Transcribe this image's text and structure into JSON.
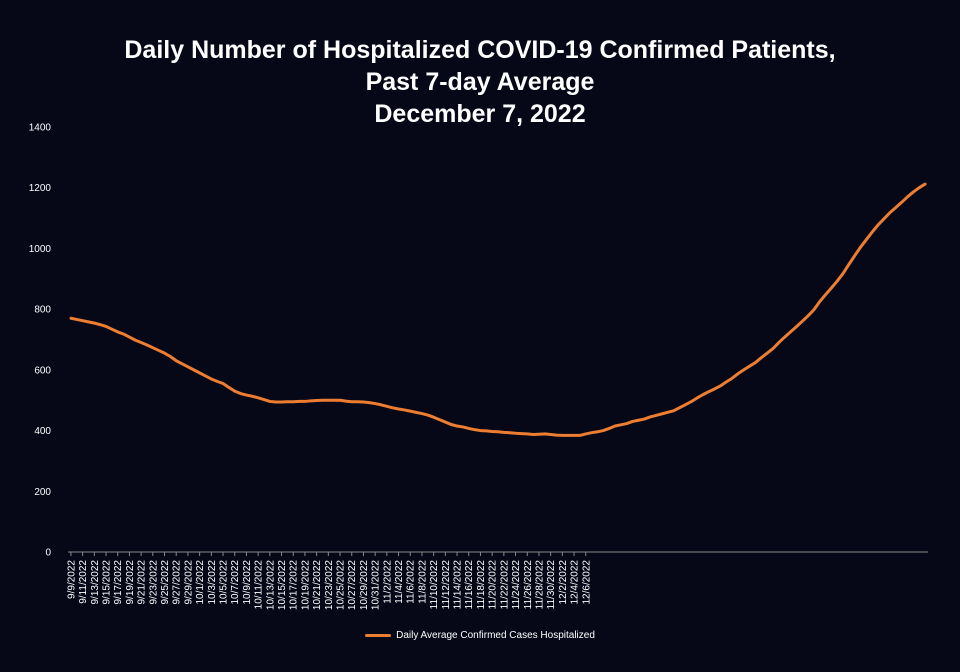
{
  "chart_data": {
    "type": "line",
    "title_lines": [
      "Daily Number of Hospitalized COVID-19 Confirmed Patients,",
      "Past 7-day Average",
      "December 7, 2022"
    ],
    "xlabel": "",
    "ylabel": "",
    "ylim": [
      0,
      1400
    ],
    "y_ticks": [
      "0",
      "200",
      "400",
      "600",
      "800",
      "1000",
      "1200",
      "1400"
    ],
    "x_tick_labels": [
      "9/9/2022",
      "9/11/2022",
      "9/13/2022",
      "9/15/2022",
      "9/17/2022",
      "9/19/2022",
      "9/21/2022",
      "9/23/2022",
      "9/25/2022",
      "9/27/2022",
      "9/29/2022",
      "10/1/2022",
      "10/3/2022",
      "10/5/2022",
      "10/7/2022",
      "10/9/2022",
      "10/11/2022",
      "10/13/2022",
      "10/15/2022",
      "10/17/2022",
      "10/19/2022",
      "10/21/2022",
      "10/23/2022",
      "10/25/2022",
      "10/27/2022",
      "10/29/2022",
      "10/31/2022",
      "11/2/2022",
      "11/4/2022",
      "11/6/2022",
      "11/8/2022",
      "11/10/2022",
      "11/12/2022",
      "11/14/2022",
      "11/16/2022",
      "11/18/2022",
      "11/20/2022",
      "11/22/2022",
      "11/24/2022",
      "11/26/2022",
      "11/28/2022",
      "11/30/2022",
      "12/2/2022",
      "12/4/2022",
      "12/6/2022"
    ],
    "x_start": "2022-09-09",
    "x_end": "2022-12-06",
    "grid": false,
    "legend_position": "bottom",
    "series": [
      {
        "name": "Daily Average Confirmed Cases Hospitalized",
        "color": "#ED7D31",
        "values": [
          770,
          766,
          762,
          758,
          754,
          749,
          743,
          734,
          725,
          718,
          708,
          698,
          690,
          682,
          673,
          664,
          655,
          644,
          630,
          620,
          610,
          600,
          590,
          580,
          570,
          562,
          555,
          542,
          530,
          522,
          517,
          513,
          508,
          502,
          496,
          494,
          494,
          495,
          495,
          496,
          496,
          498,
          499,
          500,
          500,
          500,
          500,
          497,
          495,
          495,
          494,
          492,
          489,
          485,
          480,
          475,
          471,
          468,
          464,
          460,
          456,
          451,
          444,
          436,
          428,
          420,
          415,
          412,
          407,
          403,
          400,
          399,
          397,
          396,
          394,
          393,
          391,
          390,
          389,
          387,
          388,
          389,
          387,
          385,
          384,
          384,
          384,
          384,
          389,
          393,
          396,
          400,
          407,
          415,
          419,
          423,
          430,
          434,
          438,
          445,
          450,
          455,
          460,
          465,
          475,
          485,
          495,
          507,
          518,
          528,
          537,
          547,
          560,
          572,
          587,
          600,
          612,
          624,
          640,
          655,
          670,
          690,
          708,
          725,
          742,
          760,
          778,
          798,
          825,
          848,
          870,
          893,
          918,
          948,
          977,
          1005,
          1030,
          1055,
          1078,
          1098,
          1118,
          1135,
          1152,
          1170,
          1186,
          1200,
          1212
        ]
      }
    ]
  }
}
